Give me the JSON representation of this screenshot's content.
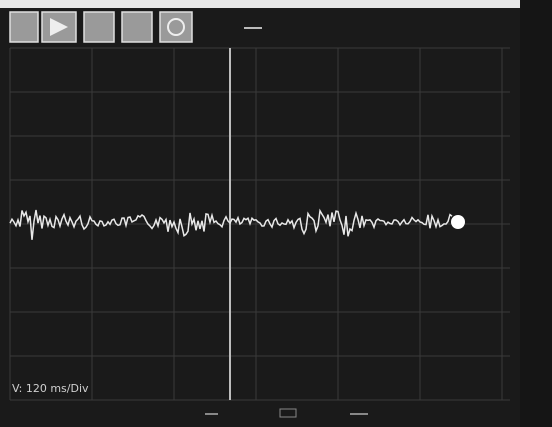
{
  "status": {
    "scale_label": "V: 120 ms/Div"
  }
}
